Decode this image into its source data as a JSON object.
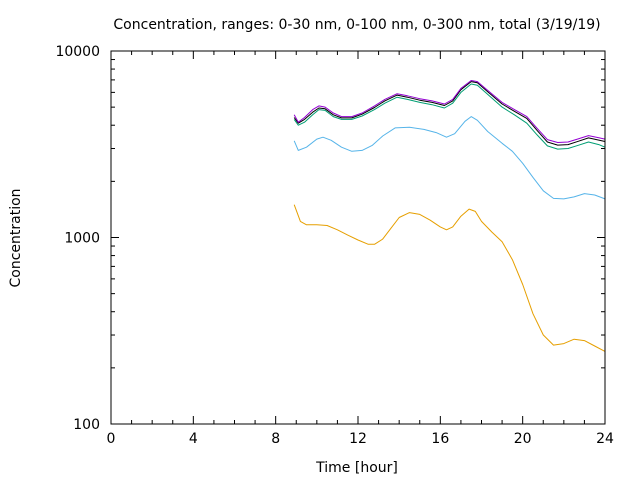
{
  "chart_data": {
    "type": "line",
    "title": "Concentration, ranges: 0-30 nm, 0-100 nm, 0-300 nm, total (3/19/19)",
    "xlabel": "Time [hour]",
    "ylabel": "Concentration",
    "xlim": [
      0,
      24
    ],
    "ylim": [
      100,
      10000
    ],
    "yscale": "log",
    "grid": false,
    "legend": "none",
    "x_ticks": [
      0,
      4,
      8,
      12,
      16,
      20,
      24
    ],
    "y_ticks": [
      100,
      1000,
      10000
    ],
    "series": [
      {
        "color": "#e69f00",
        "points": [
          [
            8.9,
            1500
          ],
          [
            9.2,
            1220
          ],
          [
            9.5,
            1170
          ],
          [
            10.0,
            1170
          ],
          [
            10.5,
            1160
          ],
          [
            11.0,
            1100
          ],
          [
            11.5,
            1030
          ],
          [
            12.0,
            970
          ],
          [
            12.5,
            920
          ],
          [
            12.8,
            920
          ],
          [
            13.2,
            980
          ],
          [
            13.6,
            1120
          ],
          [
            14.0,
            1280
          ],
          [
            14.5,
            1360
          ],
          [
            15.0,
            1330
          ],
          [
            15.5,
            1240
          ],
          [
            16.0,
            1140
          ],
          [
            16.3,
            1100
          ],
          [
            16.6,
            1140
          ],
          [
            17.0,
            1300
          ],
          [
            17.4,
            1420
          ],
          [
            17.7,
            1380
          ],
          [
            18.0,
            1220
          ],
          [
            18.5,
            1070
          ],
          [
            19.0,
            950
          ],
          [
            19.5,
            760
          ],
          [
            20.0,
            560
          ],
          [
            20.5,
            390
          ],
          [
            21.0,
            300
          ],
          [
            21.5,
            265
          ],
          [
            22.0,
            270
          ],
          [
            22.5,
            285
          ],
          [
            23.0,
            280
          ],
          [
            23.5,
            262
          ],
          [
            24.0,
            245
          ]
        ]
      },
      {
        "color": "#56b4e9",
        "points": [
          [
            8.9,
            3300
          ],
          [
            9.1,
            2930
          ],
          [
            9.5,
            3050
          ],
          [
            10.0,
            3370
          ],
          [
            10.3,
            3450
          ],
          [
            10.7,
            3320
          ],
          [
            11.2,
            3050
          ],
          [
            11.7,
            2900
          ],
          [
            12.2,
            2930
          ],
          [
            12.7,
            3120
          ],
          [
            13.2,
            3500
          ],
          [
            13.8,
            3870
          ],
          [
            14.5,
            3900
          ],
          [
            15.2,
            3800
          ],
          [
            15.8,
            3650
          ],
          [
            16.3,
            3450
          ],
          [
            16.7,
            3600
          ],
          [
            17.2,
            4200
          ],
          [
            17.5,
            4450
          ],
          [
            17.8,
            4250
          ],
          [
            18.3,
            3700
          ],
          [
            19.0,
            3200
          ],
          [
            19.5,
            2900
          ],
          [
            20.0,
            2500
          ],
          [
            20.5,
            2100
          ],
          [
            21.0,
            1780
          ],
          [
            21.5,
            1620
          ],
          [
            22.0,
            1610
          ],
          [
            22.5,
            1650
          ],
          [
            23.0,
            1720
          ],
          [
            23.5,
            1690
          ],
          [
            24.0,
            1610
          ]
        ]
      },
      {
        "color": "#009e73",
        "points": [
          [
            8.9,
            4300
          ],
          [
            9.1,
            4000
          ],
          [
            9.4,
            4150
          ],
          [
            9.8,
            4550
          ],
          [
            10.1,
            4850
          ],
          [
            10.4,
            4800
          ],
          [
            10.8,
            4450
          ],
          [
            11.2,
            4300
          ],
          [
            11.7,
            4300
          ],
          [
            12.2,
            4480
          ],
          [
            12.8,
            4850
          ],
          [
            13.3,
            5250
          ],
          [
            13.9,
            5650
          ],
          [
            14.4,
            5500
          ],
          [
            15.0,
            5300
          ],
          [
            15.6,
            5150
          ],
          [
            16.2,
            4950
          ],
          [
            16.6,
            5250
          ],
          [
            17.0,
            6000
          ],
          [
            17.5,
            6650
          ],
          [
            17.8,
            6550
          ],
          [
            18.3,
            5850
          ],
          [
            19.0,
            5000
          ],
          [
            19.6,
            4550
          ],
          [
            20.2,
            4100
          ],
          [
            20.7,
            3550
          ],
          [
            21.2,
            3100
          ],
          [
            21.7,
            2980
          ],
          [
            22.2,
            3000
          ],
          [
            22.7,
            3120
          ],
          [
            23.2,
            3250
          ],
          [
            23.7,
            3150
          ],
          [
            24.0,
            3050
          ]
        ]
      },
      {
        "color": "#000000",
        "points": [
          [
            8.9,
            4400
          ],
          [
            9.1,
            4100
          ],
          [
            9.4,
            4300
          ],
          [
            9.8,
            4700
          ],
          [
            10.1,
            4950
          ],
          [
            10.4,
            4900
          ],
          [
            10.8,
            4550
          ],
          [
            11.2,
            4380
          ],
          [
            11.7,
            4380
          ],
          [
            12.2,
            4580
          ],
          [
            12.8,
            4980
          ],
          [
            13.3,
            5400
          ],
          [
            13.9,
            5800
          ],
          [
            14.4,
            5650
          ],
          [
            15.0,
            5450
          ],
          [
            15.6,
            5300
          ],
          [
            16.2,
            5100
          ],
          [
            16.6,
            5400
          ],
          [
            17.0,
            6200
          ],
          [
            17.5,
            6850
          ],
          [
            17.8,
            6750
          ],
          [
            18.3,
            6050
          ],
          [
            19.0,
            5200
          ],
          [
            19.6,
            4750
          ],
          [
            20.2,
            4350
          ],
          [
            20.7,
            3750
          ],
          [
            21.2,
            3250
          ],
          [
            21.7,
            3130
          ],
          [
            22.2,
            3150
          ],
          [
            22.7,
            3280
          ],
          [
            23.2,
            3420
          ],
          [
            23.7,
            3330
          ],
          [
            24.0,
            3270
          ]
        ]
      },
      {
        "color": "#9400d3",
        "points": [
          [
            8.9,
            4550
          ],
          [
            9.1,
            4150
          ],
          [
            9.4,
            4400
          ],
          [
            9.8,
            4850
          ],
          [
            10.1,
            5080
          ],
          [
            10.4,
            5000
          ],
          [
            10.8,
            4650
          ],
          [
            11.2,
            4450
          ],
          [
            11.7,
            4450
          ],
          [
            12.2,
            4650
          ],
          [
            12.8,
            5080
          ],
          [
            13.3,
            5500
          ],
          [
            13.9,
            5900
          ],
          [
            14.4,
            5750
          ],
          [
            15.0,
            5550
          ],
          [
            15.6,
            5400
          ],
          [
            16.2,
            5200
          ],
          [
            16.6,
            5500
          ],
          [
            17.0,
            6300
          ],
          [
            17.5,
            6950
          ],
          [
            17.8,
            6850
          ],
          [
            18.3,
            6150
          ],
          [
            19.0,
            5300
          ],
          [
            19.6,
            4850
          ],
          [
            20.2,
            4450
          ],
          [
            20.7,
            3850
          ],
          [
            21.2,
            3350
          ],
          [
            21.7,
            3230
          ],
          [
            22.2,
            3250
          ],
          [
            22.7,
            3380
          ],
          [
            23.2,
            3520
          ],
          [
            23.7,
            3430
          ],
          [
            24.0,
            3370
          ]
        ]
      }
    ]
  }
}
